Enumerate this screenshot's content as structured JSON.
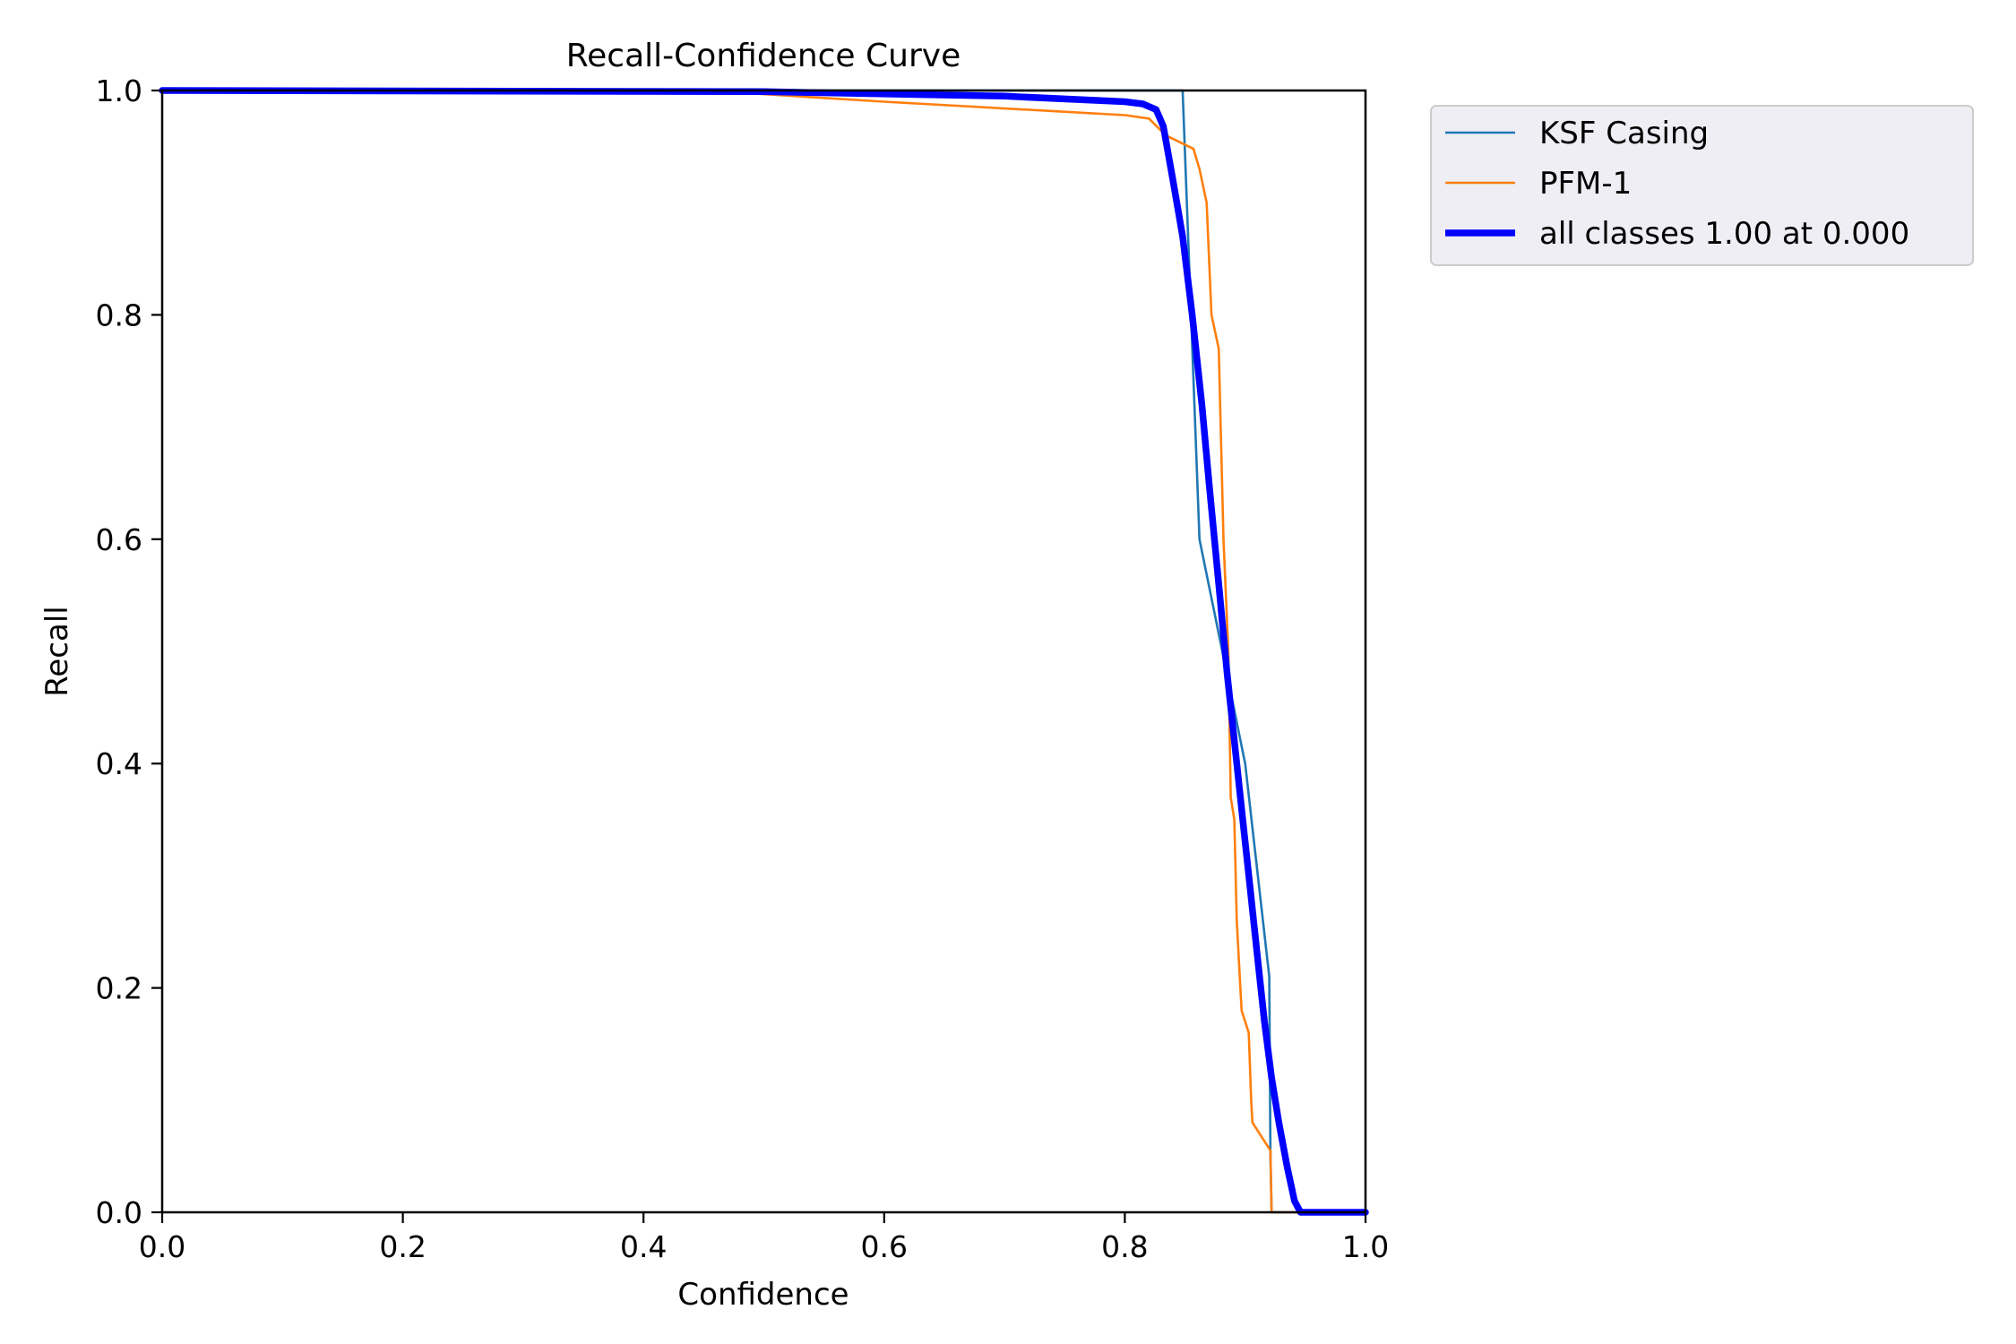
{
  "chart_data": {
    "type": "line",
    "title": "Recall-Confidence Curve",
    "xlabel": "Confidence",
    "ylabel": "Recall",
    "xlim": [
      0,
      1
    ],
    "ylim": [
      0,
      1
    ],
    "xticks": [
      "0.0",
      "0.2",
      "0.4",
      "0.6",
      "0.8",
      "1.0"
    ],
    "yticks": [
      "0.0",
      "0.2",
      "0.4",
      "0.6",
      "0.8",
      "1.0"
    ],
    "grid": false,
    "legend_position": "outside-top-right",
    "series": [
      {
        "name": "KSF Casing",
        "color": "#1f77b4",
        "points": [
          [
            0,
            1
          ],
          [
            0.848,
            1
          ],
          [
            0.862,
            0.6
          ],
          [
            0.9,
            0.4
          ],
          [
            0.92,
            0.21
          ],
          [
            0.921,
            0.05
          ],
          [
            0.922,
            0
          ],
          [
            1,
            0
          ]
        ]
      },
      {
        "name": "PFM-1",
        "color": "#ff7f0e",
        "points": [
          [
            0,
            1
          ],
          [
            0.45,
            1
          ],
          [
            0.6,
            0.99
          ],
          [
            0.8,
            0.978
          ],
          [
            0.82,
            0.975
          ],
          [
            0.834,
            0.96
          ],
          [
            0.857,
            0.948
          ],
          [
            0.862,
            0.93
          ],
          [
            0.868,
            0.9
          ],
          [
            0.872,
            0.8
          ],
          [
            0.878,
            0.77
          ],
          [
            0.882,
            0.6
          ],
          [
            0.886,
            0.5
          ],
          [
            0.888,
            0.37
          ],
          [
            0.891,
            0.35
          ],
          [
            0.893,
            0.26
          ],
          [
            0.895,
            0.22
          ],
          [
            0.897,
            0.18
          ],
          [
            0.903,
            0.16
          ],
          [
            0.905,
            0.1
          ],
          [
            0.906,
            0.08
          ],
          [
            0.921,
            0.055
          ],
          [
            0.922,
            0
          ],
          [
            1,
            0
          ]
        ]
      },
      {
        "name": "all classes 1.00 at 0.000",
        "color": "#0000ff",
        "points": [
          [
            0,
            1
          ],
          [
            0.5,
            0.999
          ],
          [
            0.7,
            0.995
          ],
          [
            0.8,
            0.99
          ],
          [
            0.815,
            0.988
          ],
          [
            0.826,
            0.983
          ],
          [
            0.832,
            0.968
          ],
          [
            0.84,
            0.92
          ],
          [
            0.848,
            0.87
          ],
          [
            0.856,
            0.8
          ],
          [
            0.864,
            0.72
          ],
          [
            0.87,
            0.65
          ],
          [
            0.878,
            0.56
          ],
          [
            0.885,
            0.48
          ],
          [
            0.892,
            0.41
          ],
          [
            0.898,
            0.35
          ],
          [
            0.904,
            0.29
          ],
          [
            0.91,
            0.23
          ],
          [
            0.916,
            0.17
          ],
          [
            0.922,
            0.12
          ],
          [
            0.928,
            0.08
          ],
          [
            0.935,
            0.04
          ],
          [
            0.941,
            0.01
          ],
          [
            0.946,
            0
          ],
          [
            1,
            0
          ]
        ]
      }
    ]
  }
}
